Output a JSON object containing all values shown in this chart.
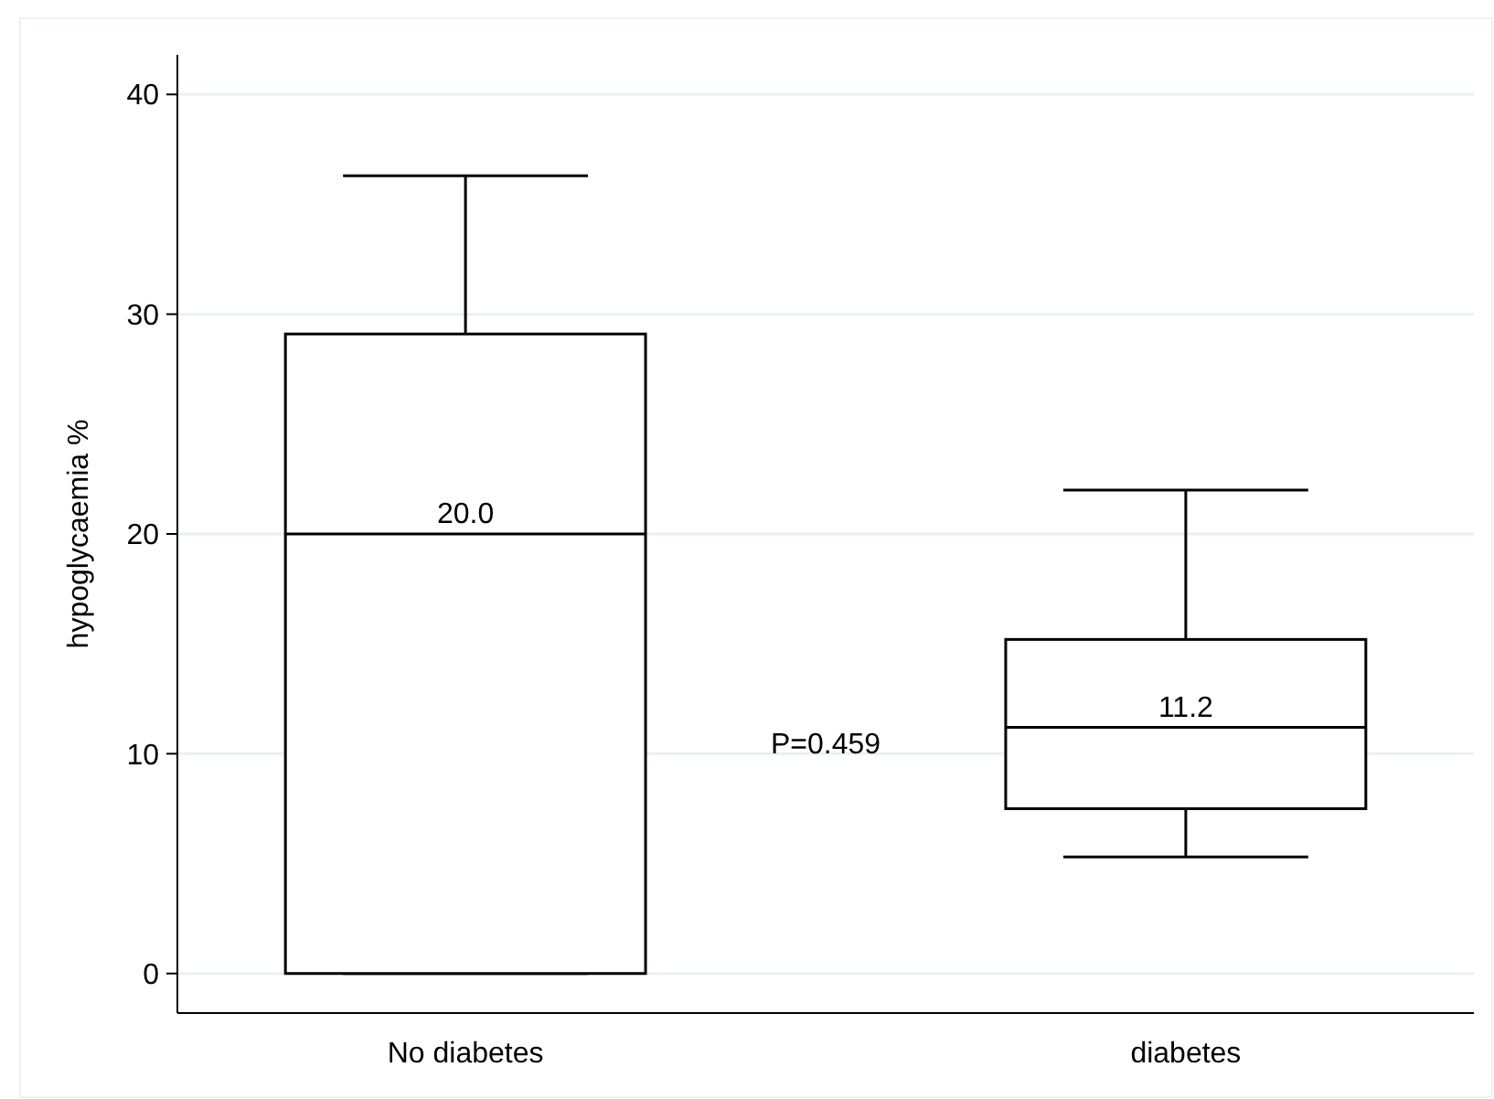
{
  "chart_data": {
    "type": "box",
    "ylabel": "hypoglycaemia %",
    "categories": [
      "No diabetes",
      "diabetes"
    ],
    "boxes": [
      {
        "low": 0,
        "q1": 0,
        "median": 20,
        "q3": 29.1,
        "high": 36.3
      },
      {
        "low": 5.3,
        "q1": 7.5,
        "median": 11.2,
        "q3": 15.2,
        "high": 22
      }
    ],
    "ylim": [
      -1.8,
      41.8
    ],
    "yticks": [
      0,
      10,
      20,
      30,
      40
    ],
    "grid": "y",
    "annotations": [
      {
        "text": "20.0",
        "x": "No diabetes",
        "y": 20
      },
      {
        "text": "11.2",
        "x": "diabetes",
        "y": 11.2
      },
      "P=0.459"
    ]
  }
}
